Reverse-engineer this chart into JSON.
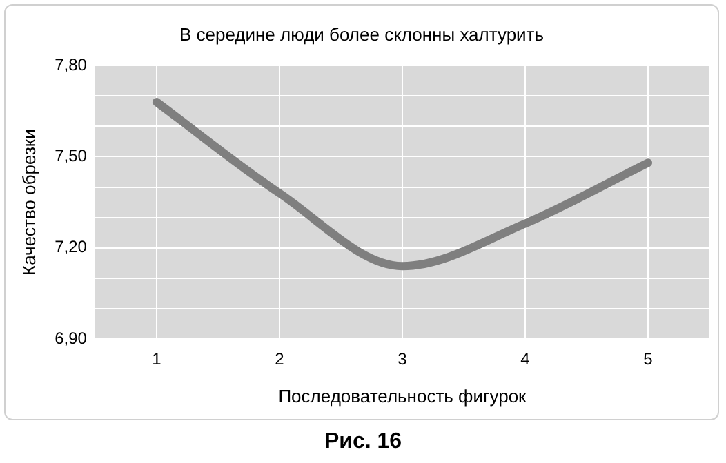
{
  "chart_data": {
    "type": "line",
    "title": "В середине люди более склонны халтурить",
    "xlabel": "Последовательность фигурок",
    "ylabel": "Качество обрезки",
    "categories": [
      "1",
      "2",
      "3",
      "4",
      "5"
    ],
    "series": [
      {
        "color": "#7f7f7f",
        "values": [
          7.68,
          7.38,
          7.14,
          7.28,
          7.48
        ]
      }
    ],
    "ylim": [
      6.9,
      7.8
    ],
    "yticks": [
      {
        "value": 6.9,
        "label": "6,90"
      },
      {
        "value": 7.0,
        "label": null
      },
      {
        "value": 7.1,
        "label": null
      },
      {
        "value": 7.2,
        "label": "7,20"
      },
      {
        "value": 7.3,
        "label": null
      },
      {
        "value": 7.4,
        "label": null
      },
      {
        "value": 7.5,
        "label": "7,50"
      },
      {
        "value": 7.6,
        "label": null
      },
      {
        "value": 7.7,
        "label": null
      },
      {
        "value": 7.8,
        "label": "7,80"
      }
    ],
    "grid": true,
    "legend": false,
    "marker": "none",
    "line_style": "solid",
    "annotations": [
      "Рис. 16"
    ]
  }
}
